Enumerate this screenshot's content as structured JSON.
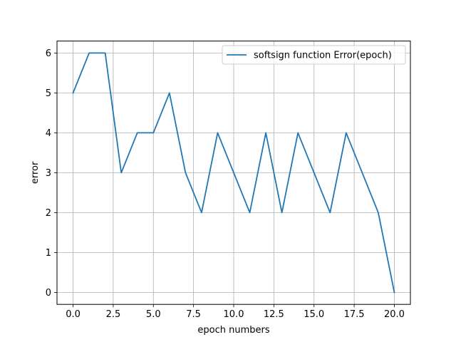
{
  "chart_data": {
    "type": "line",
    "title": "",
    "xlabel": "epoch numbers",
    "ylabel": "error",
    "xlim": [
      -1,
      21
    ],
    "ylim": [
      -0.3,
      6.3
    ],
    "xticks": [
      0,
      2.5,
      5,
      7.5,
      10,
      12.5,
      15,
      17.5,
      20
    ],
    "xtick_labels": [
      "0.0",
      "2.5",
      "5.0",
      "7.5",
      "10.0",
      "12.5",
      "15.0",
      "17.5",
      "20.0"
    ],
    "yticks": [
      0,
      1,
      2,
      3,
      4,
      5,
      6
    ],
    "ytick_labels": [
      "0",
      "1",
      "2",
      "3",
      "4",
      "5",
      "6"
    ],
    "grid": true,
    "legend_position": "top-right",
    "series": [
      {
        "name": "softsign function Error(epoch)",
        "color": "#1f77b4",
        "x": [
          0,
          1,
          2,
          3,
          4,
          5,
          6,
          7,
          8,
          9,
          10,
          11,
          12,
          13,
          14,
          15,
          16,
          17,
          18,
          19,
          20
        ],
        "y": [
          5,
          6,
          6,
          3,
          4,
          4,
          5,
          3,
          2,
          4,
          3,
          2,
          4,
          2,
          4,
          3,
          2,
          4,
          3,
          2,
          0
        ]
      }
    ]
  }
}
